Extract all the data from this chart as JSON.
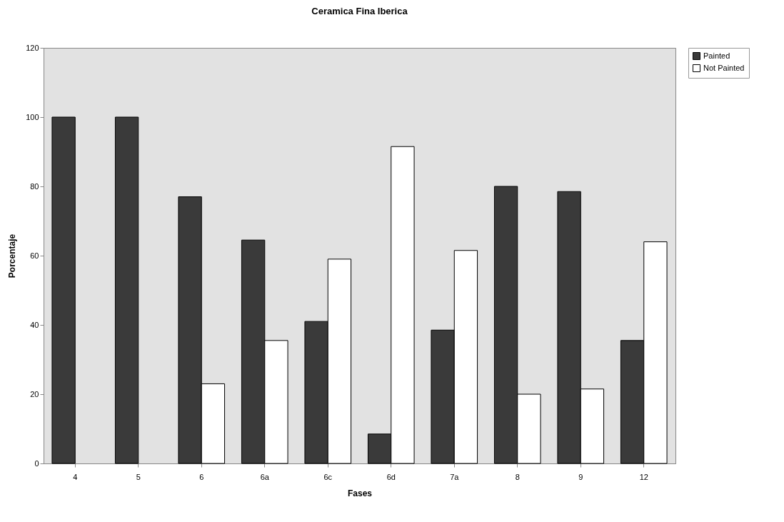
{
  "chart_data": {
    "type": "bar",
    "title": "Ceramica Fina Iberica",
    "xlabel": "Fases",
    "ylabel": "Porcentaje",
    "categories": [
      "4",
      "5",
      "6",
      "6a",
      "6c",
      "6d",
      "7a",
      "8",
      "9",
      "12"
    ],
    "series": [
      {
        "name": "Painted",
        "color": "#3a3a3a",
        "values": [
          100,
          100,
          77,
          64.5,
          41,
          8.5,
          38.5,
          80,
          78.5,
          35.5
        ]
      },
      {
        "name": "Not Painted",
        "color": "#ffffff",
        "values": [
          null,
          null,
          23,
          35.5,
          59,
          91.5,
          61.5,
          20,
          21.5,
          64
        ]
      }
    ],
    "ylim": [
      0,
      120
    ],
    "yticks": [
      0,
      20,
      40,
      60,
      80,
      100,
      120
    ],
    "grid": false,
    "legend": "right"
  }
}
